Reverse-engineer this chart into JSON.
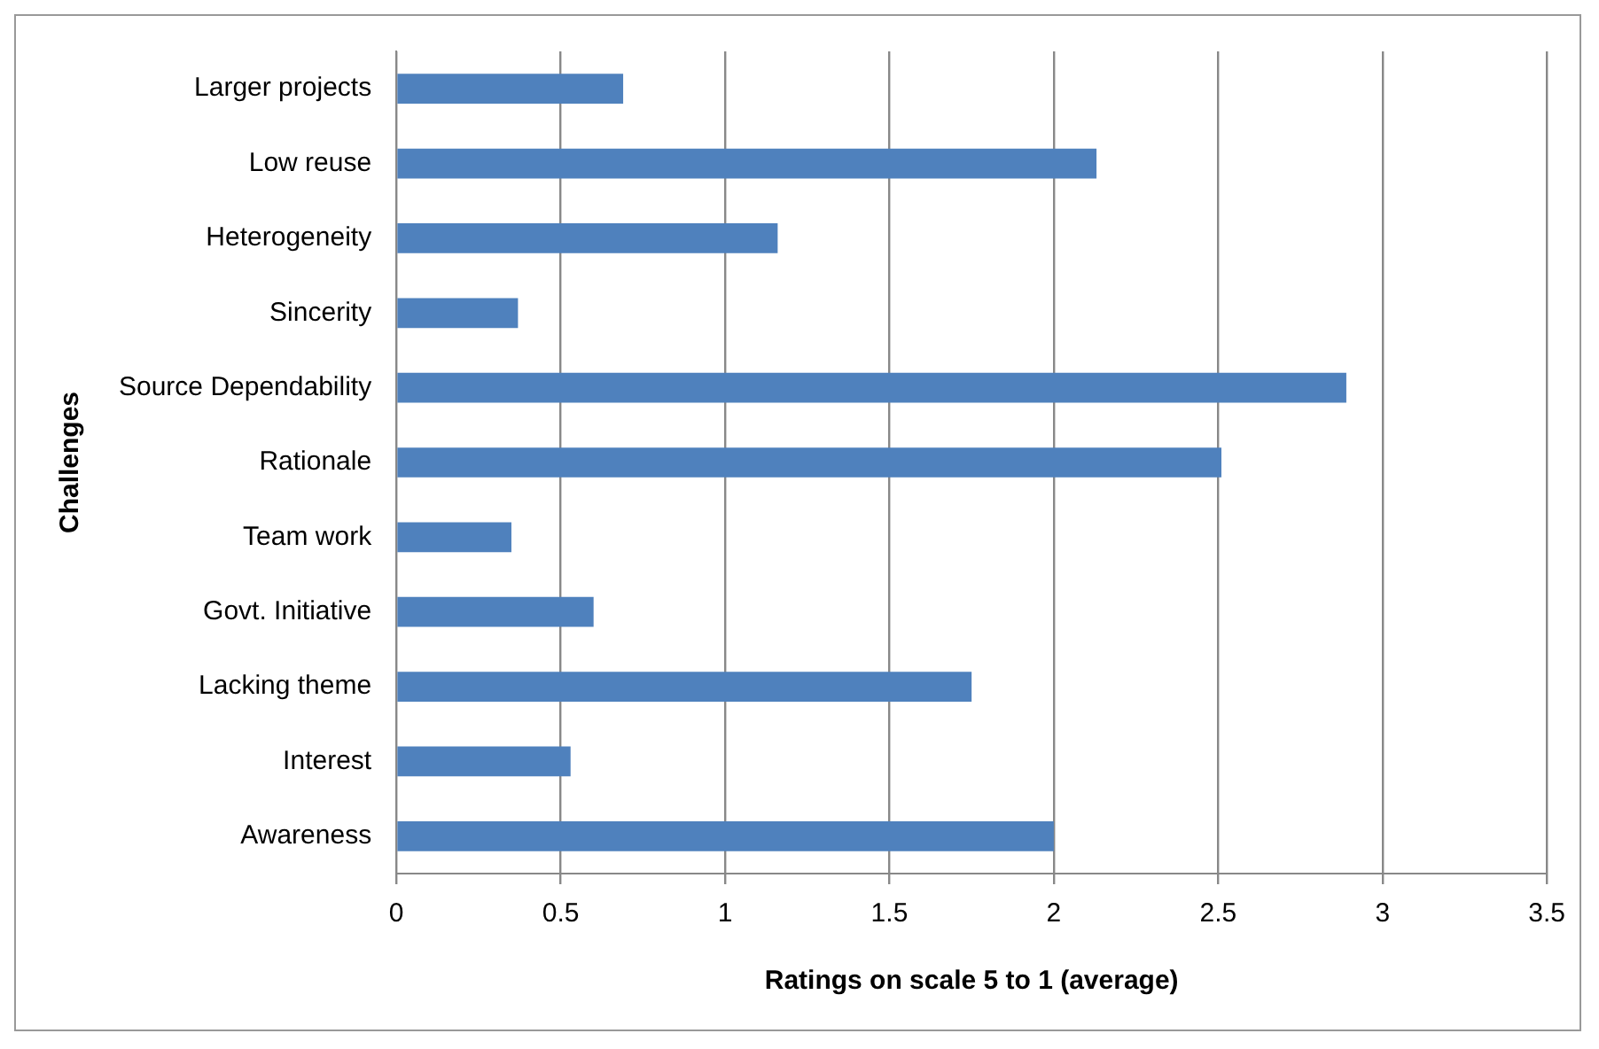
{
  "chart_data": {
    "type": "bar",
    "orientation": "horizontal",
    "xlabel": "Ratings on scale 5 to 1 (average)",
    "ylabel": "Challenges",
    "categories": [
      "Larger projects",
      "Low reuse",
      "Heterogeneity",
      "Sincerity",
      "Source Dependability",
      "Rationale",
      "Team work",
      "Govt. Initiative",
      "Lacking theme",
      "Interest",
      "Awareness"
    ],
    "values": [
      0.69,
      2.13,
      1.16,
      0.37,
      2.89,
      2.51,
      0.35,
      0.6,
      1.75,
      0.53,
      2.0
    ],
    "color": "#4f81bd",
    "xlim": [
      0,
      3.5
    ],
    "xticks": [
      0,
      0.5,
      1,
      1.5,
      2,
      2.5,
      3,
      3.5
    ],
    "grid": "x",
    "legend": false
  }
}
